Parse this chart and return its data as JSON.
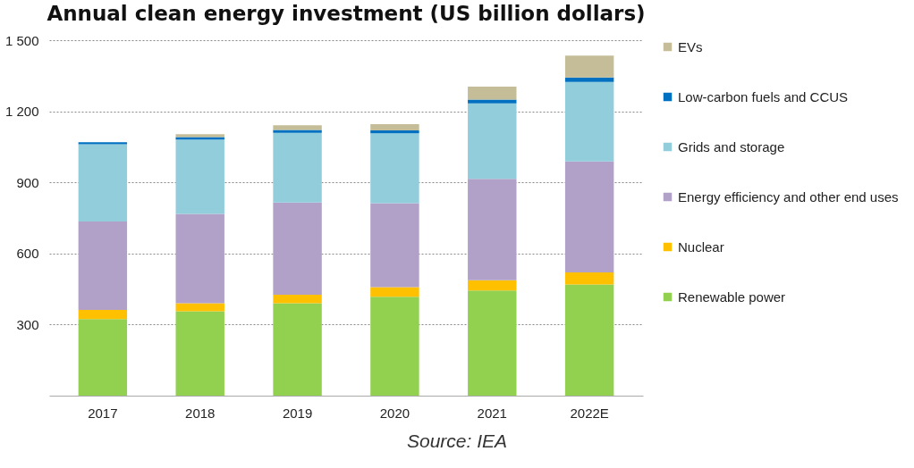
{
  "chart_data": {
    "type": "bar",
    "title": "Annual clean energy investment (US billion dollars)",
    "stacked": true,
    "categories": [
      "2017",
      "2018",
      "2019",
      "2020",
      "2021",
      "2022E"
    ],
    "series": [
      {
        "name": "Renewable power",
        "color": "#92d050",
        "values": [
          323,
          356,
          390,
          417,
          444,
          469
        ]
      },
      {
        "name": "Nuclear",
        "color": "#ffc000",
        "values": [
          39,
          34,
          36,
          41,
          43,
          51
        ]
      },
      {
        "name": "Energy efficiency and other end uses",
        "color": "#b1a0c7",
        "values": [
          373,
          377,
          389,
          354,
          428,
          468
        ]
      },
      {
        "name": "Grids and storage",
        "color": "#92cddc",
        "values": [
          326,
          314,
          294,
          295,
          318,
          336
        ]
      },
      {
        "name": "Low-carbon fuels and CCUS",
        "color": "#0070c0",
        "values": [
          8,
          10,
          12,
          12,
          16,
          19
        ]
      },
      {
        "name": "EVs",
        "color": "#c4bd97",
        "values": [
          null,
          12,
          20,
          27,
          55,
          92
        ]
      }
    ],
    "ylim": [
      0,
      1500
    ],
    "yticks": [
      300,
      600,
      900,
      {
        "value": 1200,
        "label": "1 200"
      },
      {
        "value": 1500,
        "label": "1 500"
      }
    ],
    "grid": "y",
    "legend": "right",
    "annotations": [
      "Source: IEA"
    ]
  }
}
